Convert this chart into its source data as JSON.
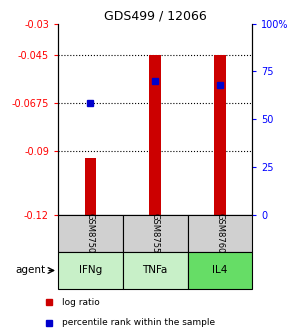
{
  "title": "GDS499 / 12066",
  "categories": [
    "IFNg",
    "TNFa",
    "IL4"
  ],
  "gsm_labels": [
    "GSM8750",
    "GSM8755",
    "GSM8760"
  ],
  "bar_tops": [
    -0.093,
    -0.045,
    -0.045
  ],
  "bar_bottom": -0.12,
  "percentile_values": [
    -0.0675,
    -0.057,
    -0.059
  ],
  "ylim_left": [
    -0.12,
    -0.03
  ],
  "ylim_right": [
    0,
    100
  ],
  "yticks_left": [
    -0.12,
    -0.09,
    -0.0675,
    -0.045,
    -0.03
  ],
  "ytick_labels_left": [
    "-0.12",
    "-0.09",
    "-0.0675",
    "-0.045",
    "-0.03"
  ],
  "yticks_right": [
    0,
    25,
    50,
    75,
    100
  ],
  "ytick_labels_right": [
    "0",
    "25",
    "50",
    "75",
    "100%"
  ],
  "bar_color": "#cc0000",
  "dot_color": "#0000cc",
  "gsm_bg_color": "#d0d0d0",
  "agent_bg_colors": [
    "#c8f0c8",
    "#c8f0c8",
    "#66dd66"
  ],
  "legend_log_color": "#cc0000",
  "legend_pct_color": "#0000cc",
  "bar_width": 0.18
}
